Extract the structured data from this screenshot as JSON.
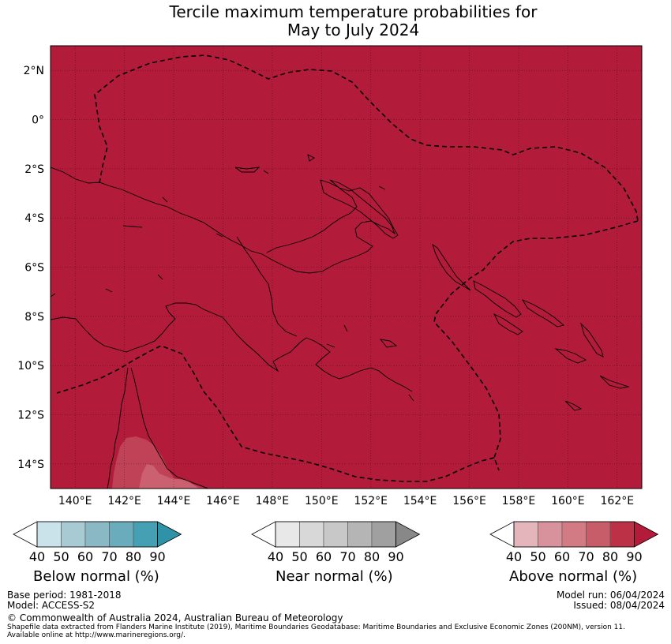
{
  "title": {
    "line1": "Tercile maximum temperature probabilities for",
    "line2": "May to July 2024"
  },
  "map": {
    "lat_labels": [
      "2°N",
      "0°",
      "2°S",
      "4°S",
      "6°S",
      "8°S",
      "10°S",
      "12°S",
      "14°S"
    ],
    "lon_labels": [
      "140°E",
      "142°E",
      "144°E",
      "146°E",
      "148°E",
      "150°E",
      "152°E",
      "154°E",
      "156°E",
      "158°E",
      "160°E",
      "162°E"
    ],
    "extent": {
      "lon_min": 139,
      "lon_max": 163,
      "lat_min": -15,
      "lat_max": 3
    },
    "fill_color": "#b21c3a",
    "coast_color": "#000000"
  },
  "colorbars": [
    {
      "title": "Below normal (%)",
      "ticks": [
        "40",
        "50",
        "60",
        "70",
        "80",
        "90"
      ],
      "colors": [
        "#cae3ea",
        "#a8cbd3",
        "#8ab8c5",
        "#6aacbb",
        "#46a0b3",
        "#2f93a8"
      ]
    },
    {
      "title": "Near normal (%)",
      "ticks": [
        "40",
        "50",
        "60",
        "70",
        "80",
        "90"
      ],
      "colors": [
        "#e8e8e8",
        "#d8d8d8",
        "#c8c8c8",
        "#b5b5b5",
        "#a0a0a0",
        "#888888"
      ]
    },
    {
      "title": "Above normal (%)",
      "ticks": [
        "40",
        "50",
        "60",
        "70",
        "80",
        "90"
      ],
      "colors": [
        "#e4b6bc",
        "#d8929b",
        "#d27b84",
        "#c85d6a",
        "#bd3146",
        "#b21c3a"
      ]
    }
  ],
  "footer": {
    "base_period": "Base period: 1981-2018",
    "model": "Model: ACCESS-S2",
    "model_run": "Model run: 06/04/2024",
    "issued": "Issued: 08/04/2024",
    "copyright": "© Commonwealth of Australia 2024, Australian Bureau of Meteorology",
    "shapefile_line1": "Shapefile data extracted from Flanders Marine Institute (2019), Maritime Boundaries Geodatabase: Maritime Boundaries and Exclusive Economic Zones (200NM), version 11.",
    "shapefile_line2": "Available online at http://www.marineregions.org/."
  }
}
